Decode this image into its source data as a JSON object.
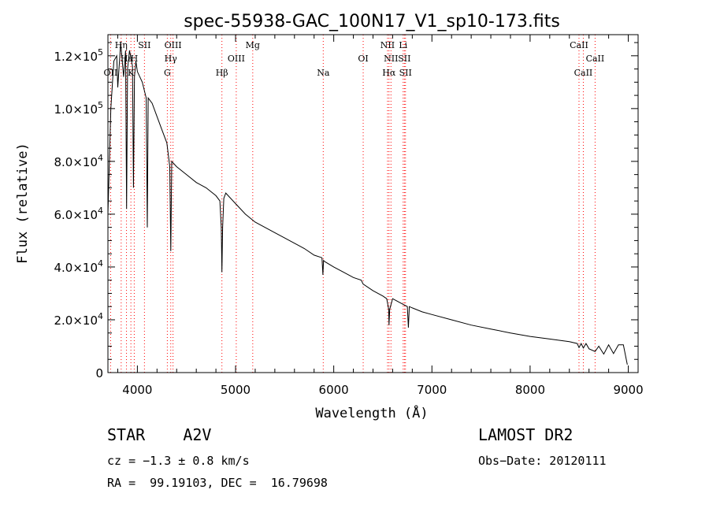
{
  "chart_data": {
    "type": "line",
    "title": "spec-55938-GAC_100N17_V1_sp10-173.fits",
    "xlabel": "Wavelength (Å)",
    "ylabel": "Flux (relative)",
    "xlim": [
      3700,
      9100
    ],
    "ylim": [
      0,
      128000
    ],
    "x_ticks": [
      {
        "value": 4000,
        "label": "4000"
      },
      {
        "value": 5000,
        "label": "5000"
      },
      {
        "value": 6000,
        "label": "6000"
      },
      {
        "value": 7000,
        "label": "7000"
      },
      {
        "value": 8000,
        "label": "8000"
      },
      {
        "value": 9000,
        "label": "9000"
      }
    ],
    "y_ticks": [
      {
        "value": 0,
        "label": "0"
      },
      {
        "value": 20000,
        "label": "2.0×10",
        "exp": "4"
      },
      {
        "value": 40000,
        "label": "4.0×10",
        "exp": "4"
      },
      {
        "value": 60000,
        "label": "6.0×10",
        "exp": "4"
      },
      {
        "value": 80000,
        "label": "8.0×10",
        "exp": "4"
      },
      {
        "value": 100000,
        "label": "1.0×10",
        "exp": "5"
      },
      {
        "value": 120000,
        "label": "1.2×10",
        "exp": "5"
      }
    ],
    "grid": false,
    "line_color": "#000000",
    "marker_color": "#ff0000",
    "spectrum": {
      "x": [
        3700,
        3730,
        3760,
        3790,
        3800,
        3830,
        3860,
        3880,
        3890,
        3900,
        3920,
        3950,
        3960,
        3970,
        3985,
        4000,
        4050,
        4090,
        4101,
        4110,
        4150,
        4200,
        4250,
        4300,
        4330,
        4340,
        4350,
        4400,
        4500,
        4600,
        4700,
        4800,
        4840,
        4855,
        4861,
        4868,
        4880,
        4900,
        5000,
        5100,
        5200,
        5300,
        5400,
        5500,
        5600,
        5700,
        5800,
        5880,
        5890,
        5896,
        5910,
        6000,
        6100,
        6200,
        6280,
        6300,
        6400,
        6500,
        6540,
        6560,
        6563,
        6570,
        6600,
        6700,
        6750,
        6760,
        6770,
        6800,
        6900,
        7000,
        7200,
        7400,
        7600,
        7800,
        8000,
        8200,
        8400,
        8480,
        8498,
        8520,
        8542,
        8570,
        8600,
        8662,
        8700,
        8750,
        8800,
        8850,
        8900,
        8950,
        8990
      ],
      "y": [
        60000,
        100000,
        118000,
        120000,
        108000,
        125000,
        112000,
        122000,
        62000,
        115000,
        122000,
        116000,
        70000,
        112000,
        118000,
        114000,
        110000,
        104000,
        55000,
        104000,
        102000,
        97000,
        92000,
        87000,
        78000,
        46000,
        80000,
        78000,
        75000,
        72000,
        70000,
        67000,
        65000,
        55000,
        38000,
        55000,
        66000,
        68000,
        64000,
        60000,
        57000,
        55000,
        53000,
        51000,
        49000,
        47000,
        44500,
        43500,
        37000,
        42500,
        42000,
        40000,
        38000,
        36000,
        35000,
        33500,
        31000,
        29000,
        28000,
        24000,
        18000,
        24000,
        28000,
        26000,
        25000,
        17000,
        25000,
        24500,
        23000,
        22000,
        20000,
        18000,
        16500,
        15000,
        13700,
        12700,
        11700,
        11000,
        9500,
        11000,
        9300,
        11000,
        9000,
        8000,
        10000,
        7000,
        10500,
        7200,
        10500,
        10500,
        3000
      ]
    },
    "lines": [
      {
        "label": "Hη",
        "wl": 3835,
        "row": 1
      },
      {
        "label": "Hε",
        "wl": 3889,
        "row": 2
      },
      {
        "label": "OII",
        "wl": 3727,
        "row": 3
      },
      {
        "label": "K",
        "wl": 3934,
        "row": 3
      },
      {
        "label": "H",
        "wl": 3968,
        "row": 2
      },
      {
        "label": "SII",
        "wl": 4072,
        "row": 1
      },
      {
        "label": "OIII",
        "wl": 4363,
        "row": 1
      },
      {
        "label": "Hγ",
        "wl": 4340,
        "row": 2
      },
      {
        "label": "G",
        "wl": 4305,
        "row": 3
      },
      {
        "label": "Hβ",
        "wl": 4861,
        "row": 3
      },
      {
        "label": "OIII",
        "wl": 5007,
        "row": 2
      },
      {
        "label": "Mg",
        "wl": 5175,
        "row": 1
      },
      {
        "label": "Na",
        "wl": 5893,
        "row": 3
      },
      {
        "label": "OI",
        "wl": 6300,
        "row": 2
      },
      {
        "label": "NII",
        "wl": 6548,
        "row": 1
      },
      {
        "label": "NII",
        "wl": 6583,
        "row": 2
      },
      {
        "label": "Hα",
        "wl": 6563,
        "row": 3
      },
      {
        "label": "Li",
        "wl": 6707,
        "row": 1
      },
      {
        "label": "SII",
        "wl": 6720,
        "row": 2
      },
      {
        "label": "SII",
        "wl": 6731,
        "row": 3
      },
      {
        "label": "CaII",
        "wl": 8498,
        "row": 1
      },
      {
        "label": "CaII",
        "wl": 8662,
        "row": 2
      },
      {
        "label": "CaII",
        "wl": 8542,
        "row": 3
      }
    ]
  },
  "info": {
    "class_label": "STAR    A2V",
    "cz_label": "cz = −1.3 ± 0.8 km/s",
    "radec_label": "RA =  99.19103, DEC =  16.79698",
    "survey_label": "LAMOST DR2",
    "obsdate_label": "Obs−Date: 20120111"
  }
}
